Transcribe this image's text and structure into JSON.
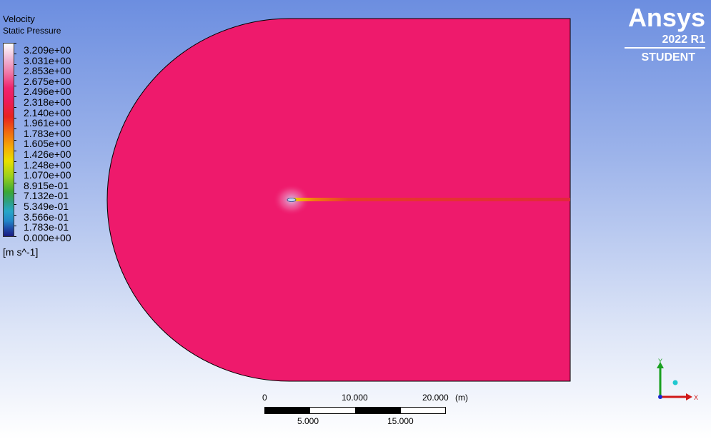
{
  "legend": {
    "title": "Velocity",
    "subtitle": "Static Pressure",
    "levels": [
      "3.209e+00",
      "3.031e+00",
      "2.853e+00",
      "2.675e+00",
      "2.496e+00",
      "2.318e+00",
      "2.140e+00",
      "1.961e+00",
      "1.783e+00",
      "1.605e+00",
      "1.426e+00",
      "1.248e+00",
      "1.070e+00",
      "8.915e-01",
      "7.132e-01",
      "5.349e-01",
      "3.566e-01",
      "1.783e-01",
      "0.000e+00"
    ],
    "units": "[m s^-1]"
  },
  "brand": {
    "name": "Ansys",
    "version": "2022 R1",
    "edition": "STUDENT"
  },
  "scale_bar": {
    "top_labels": [
      "0",
      "10.000",
      "20.000",
      "(m)"
    ],
    "bottom_labels": [
      "5.000",
      "15.000"
    ]
  },
  "axis": {
    "y": "Y",
    "x": "X"
  },
  "colors": {
    "field": "#ee1a6c",
    "wake": "#e83a2a",
    "background_top": "#6c8ee0"
  }
}
